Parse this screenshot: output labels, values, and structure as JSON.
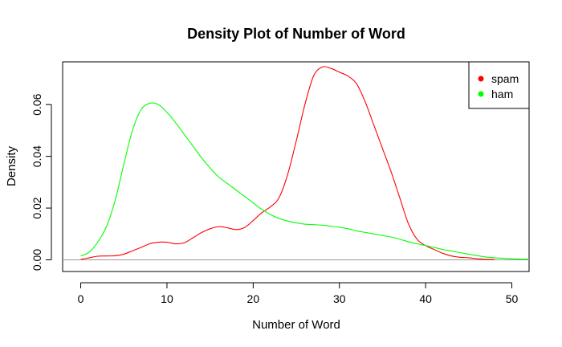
{
  "chart_data": {
    "type": "line",
    "title": "Density Plot of Number of Word",
    "xlabel": "Number of Word",
    "ylabel": "Density",
    "xlim": [
      -2.1,
      52
    ],
    "ylim": [
      -0.0045,
      0.0765
    ],
    "x_ticks": [
      0,
      10,
      20,
      30,
      40,
      50
    ],
    "y_ticks": [
      0.0,
      0.02,
      0.04,
      0.06
    ],
    "x_tick_labels": [
      "0",
      "10",
      "20",
      "30",
      "40",
      "50"
    ],
    "y_tick_labels": [
      "0.00",
      "0.02",
      "0.04",
      "0.06"
    ],
    "baseline": 0,
    "legend_position": "top-right",
    "grid": false,
    "series": [
      {
        "name": "spam",
        "color": "#ff0000",
        "x": [
          0,
          1,
          2,
          3,
          4,
          5,
          6,
          7,
          8,
          9,
          10,
          11,
          12,
          13,
          14,
          15,
          16,
          17,
          18,
          19,
          20,
          21,
          22,
          23,
          24,
          25,
          26,
          27,
          28,
          29,
          30,
          31,
          32,
          33,
          34,
          35,
          36,
          37,
          38,
          39,
          40,
          41,
          42,
          43,
          44,
          45,
          46,
          47,
          48
        ],
        "values": [
          0.0002,
          0.0008,
          0.0014,
          0.0015,
          0.0016,
          0.0022,
          0.0035,
          0.0048,
          0.0062,
          0.0068,
          0.0068,
          0.0062,
          0.0066,
          0.0085,
          0.0105,
          0.012,
          0.0128,
          0.0124,
          0.0117,
          0.0125,
          0.0152,
          0.0182,
          0.0205,
          0.024,
          0.033,
          0.046,
          0.06,
          0.071,
          0.0745,
          0.074,
          0.0725,
          0.071,
          0.068,
          0.061,
          0.052,
          0.043,
          0.034,
          0.024,
          0.014,
          0.008,
          0.0055,
          0.004,
          0.0025,
          0.0015,
          0.001,
          0.0008,
          0.0004,
          0.0002,
          0.0001
        ]
      },
      {
        "name": "ham",
        "color": "#00ff00",
        "x": [
          0,
          1,
          2,
          3,
          4,
          5,
          6,
          7,
          8,
          9,
          10,
          11,
          12,
          13,
          14,
          15,
          16,
          17,
          18,
          19,
          20,
          21,
          22,
          23,
          24,
          25,
          26,
          27,
          28,
          29,
          30,
          31,
          32,
          33,
          34,
          35,
          36,
          37,
          38,
          39,
          40,
          41,
          42,
          43,
          44,
          45,
          46,
          47,
          48,
          49,
          50,
          51,
          52
        ],
        "values": [
          0.0015,
          0.003,
          0.007,
          0.013,
          0.023,
          0.037,
          0.05,
          0.058,
          0.0605,
          0.06,
          0.057,
          0.053,
          0.0485,
          0.044,
          0.0395,
          0.0355,
          0.032,
          0.0295,
          0.027,
          0.0245,
          0.022,
          0.0195,
          0.0175,
          0.016,
          0.015,
          0.0143,
          0.0138,
          0.0136,
          0.0134,
          0.013,
          0.0126,
          0.012,
          0.0112,
          0.0106,
          0.01,
          0.0094,
          0.0088,
          0.008,
          0.007,
          0.0062,
          0.0055,
          0.0048,
          0.004,
          0.0034,
          0.0028,
          0.0022,
          0.0016,
          0.0011,
          0.0008,
          0.0006,
          0.0004,
          0.0003,
          0.0003
        ]
      }
    ]
  }
}
